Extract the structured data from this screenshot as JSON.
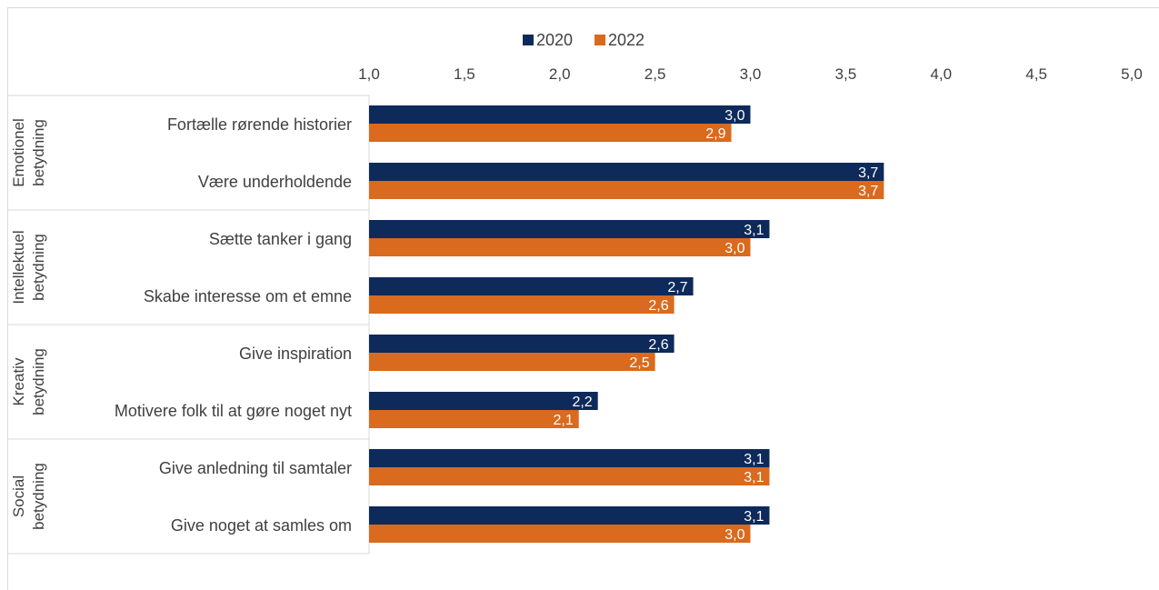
{
  "chart_data": {
    "type": "bar",
    "orientation": "horizontal",
    "xlim": [
      1.0,
      5.0
    ],
    "ticks": [
      "1,0",
      "1,5",
      "2,0",
      "2,5",
      "3,0",
      "3,5",
      "4,0",
      "4,5",
      "5,0"
    ],
    "tick_values": [
      1.0,
      1.5,
      2.0,
      2.5,
      3.0,
      3.5,
      4.0,
      4.5,
      5.0
    ],
    "legend_position": "top",
    "colors": {
      "2020": "#0d2a5a",
      "2022": "#d96a1e"
    },
    "groups": [
      {
        "name": "Emotionel betydning",
        "lines": [
          "Emotionel",
          "betydning"
        ]
      },
      {
        "name": "Intellektuel betydning",
        "lines": [
          "Intellektuel",
          "betydning"
        ]
      },
      {
        "name": "Kreativ betydning",
        "lines": [
          "Kreativ",
          "betydning"
        ]
      },
      {
        "name": "Social betydning",
        "lines": [
          "Social",
          "betydning"
        ]
      }
    ],
    "categories": [
      "Fortælle rørende historier",
      "Være underholdende",
      "Sætte tanker i gang",
      "Skabe interesse om et emne",
      "Give inspiration",
      "Motivere folk til at gøre noget nyt",
      "Give anledning til samtaler",
      "Give noget at samles om"
    ],
    "series": [
      {
        "name": "2020",
        "values": [
          3.0,
          3.7,
          3.1,
          2.7,
          2.6,
          2.2,
          3.1,
          3.1
        ],
        "labels": [
          "3,0",
          "3,7",
          "3,1",
          "2,7",
          "2,6",
          "2,2",
          "3,1",
          "3,1"
        ]
      },
      {
        "name": "2022",
        "values": [
          2.9,
          3.7,
          3.0,
          2.6,
          2.5,
          2.1,
          3.1,
          3.0
        ],
        "labels": [
          "2,9",
          "3,7",
          "3,0",
          "2,6",
          "2,5",
          "2,1",
          "3,1",
          "3,0"
        ]
      }
    ]
  }
}
